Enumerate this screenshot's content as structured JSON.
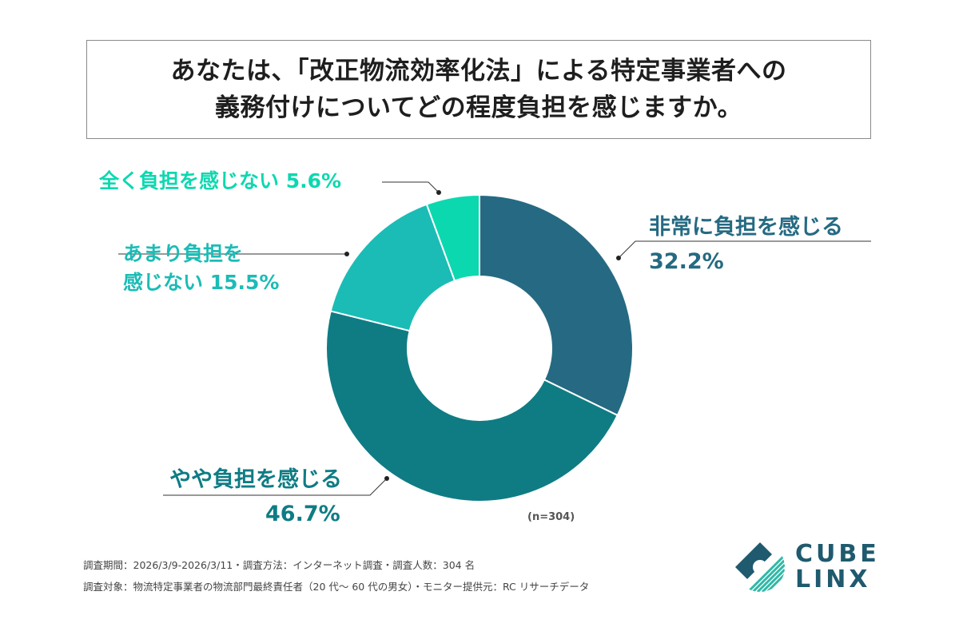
{
  "title": {
    "line1": "あなたは、「改正物流効率化法」による特定事業者への",
    "line2": "義務付けについてどの程度負担を感じますか。"
  },
  "chart_data": {
    "type": "pie",
    "title": "あなたは、「改正物流効率化法」による特定事業者への義務付けについてどの程度負担を感じますか。",
    "labels": [
      "非常に負担を感じる",
      "やや負担を感じる",
      "あまり負担を感じない",
      "全く負担を感じない"
    ],
    "values": [
      32.2,
      46.7,
      15.5,
      5.6
    ],
    "unit": "%",
    "colors": [
      "#256a82",
      "#0f7c84",
      "#1bbcb6",
      "#0cd8b0"
    ],
    "donut": true,
    "sample_size": "(n=304)"
  },
  "labels": {
    "nothing": "全く負担を感じない 5.6%",
    "little_line1": "あまり負担を",
    "little_line2": "感じない 15.5%",
    "heavy_name": "非常に負担を感じる",
    "heavy_value": "32.2%",
    "some_name": "やや負担を感じる",
    "some_value": "46.7%"
  },
  "footer": {
    "line1": "調査期間：2026/3/9-2026/3/11・調査方法：インターネット調査・調査人数：304 名",
    "line2": "調査対象：物流特定事業者の物流部門最終責任者（20 代～ 60 代の男女）・モニター提供元：RC リサーチデータ"
  },
  "logo": {
    "top": "CUBE",
    "bottom": "LINX"
  }
}
